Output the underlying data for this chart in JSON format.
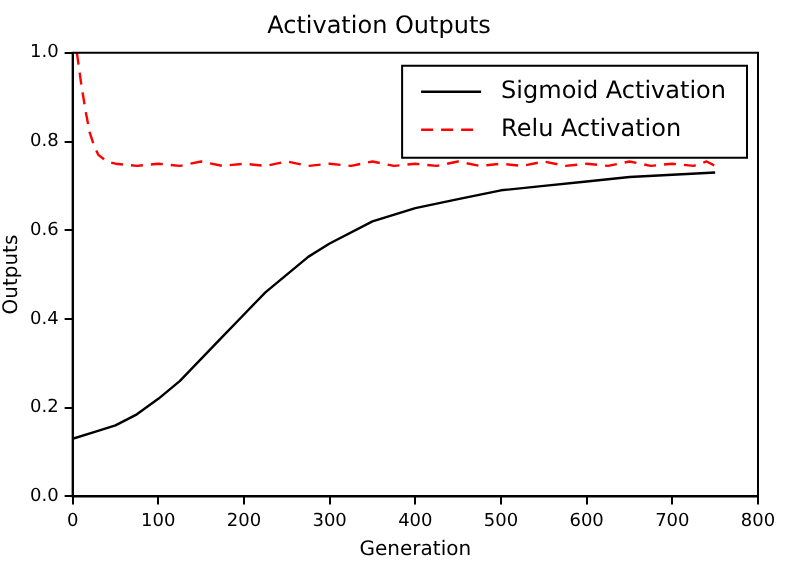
{
  "chart_data": {
    "type": "line",
    "title": "Activation Outputs",
    "xlabel": "Generation",
    "ylabel": "Outputs",
    "xlim": [
      0,
      800
    ],
    "ylim": [
      0,
      1
    ],
    "xticks": [
      0,
      100,
      200,
      300,
      400,
      500,
      600,
      700,
      800
    ],
    "yticks": [
      {
        "value": 0,
        "label": "0.0"
      },
      0.2,
      0.4,
      0.6,
      0.8,
      {
        "value": 1,
        "label": "1.0"
      }
    ],
    "grid": false,
    "legend": "top right",
    "marker": "none",
    "series": [
      {
        "name": "Sigmoid Activation",
        "color": "#000000",
        "line_style": "solid",
        "x": [
          0,
          25,
          50,
          75,
          100,
          125,
          150,
          175,
          200,
          225,
          250,
          275,
          300,
          350,
          400,
          450,
          500,
          550,
          600,
          650,
          700,
          750
        ],
        "values": [
          0.13,
          0.145,
          0.16,
          0.185,
          0.22,
          0.26,
          0.31,
          0.36,
          0.41,
          0.46,
          0.5,
          0.54,
          0.57,
          0.62,
          0.65,
          0.67,
          0.69,
          0.7,
          0.71,
          0.72,
          0.725,
          0.73
        ]
      },
      {
        "name": "Relu Activation",
        "color": "#ff0000",
        "line_style": "dashed",
        "x": [
          5,
          10,
          15,
          20,
          25,
          30,
          40,
          50,
          75,
          100,
          125,
          150,
          175,
          200,
          225,
          250,
          275,
          300,
          325,
          350,
          375,
          400,
          425,
          450,
          475,
          500,
          525,
          550,
          575,
          600,
          625,
          650,
          675,
          700,
          725,
          740,
          750
        ],
        "values": [
          1,
          0.93,
          0.87,
          0.82,
          0.79,
          0.77,
          0.755,
          0.75,
          0.745,
          0.75,
          0.745,
          0.755,
          0.745,
          0.75,
          0.745,
          0.755,
          0.745,
          0.75,
          0.745,
          0.755,
          0.745,
          0.75,
          0.745,
          0.755,
          0.745,
          0.75,
          0.745,
          0.755,
          0.745,
          0.75,
          0.745,
          0.755,
          0.745,
          0.75,
          0.745,
          0.755,
          0.745
        ]
      }
    ]
  }
}
